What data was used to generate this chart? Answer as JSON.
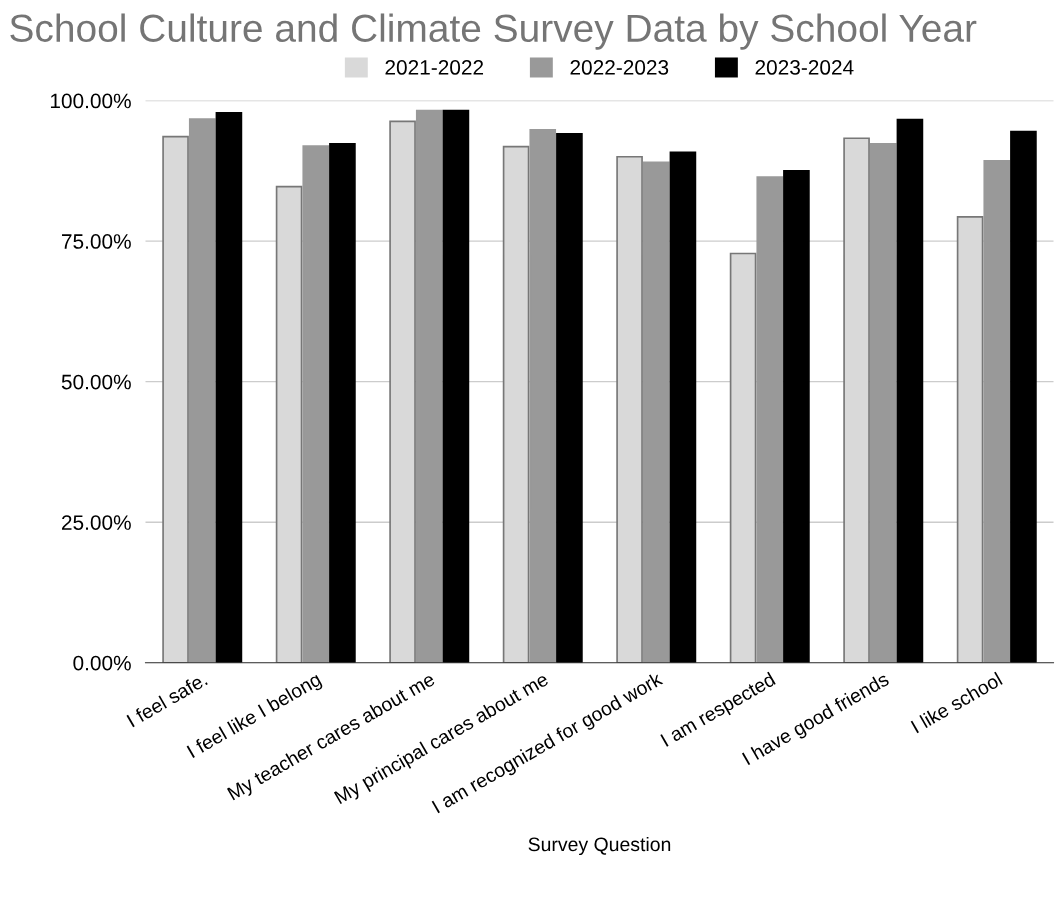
{
  "chart_data": {
    "type": "bar",
    "title": "School Culture and Climate Survey Data by School Year",
    "xlabel": "Survey Question",
    "categories": [
      "I feel safe.",
      "I feel like I belong",
      "My teacher cares about me",
      "My principal cares about me",
      "I am recognized for good work",
      "I am respected",
      "I have good friends",
      "I like school"
    ],
    "series": [
      {
        "name": "2021-2022",
        "color": "#d9d9d9",
        "values": [
          93.6,
          84.7,
          96.3,
          91.8,
          90.0,
          72.8,
          93.3,
          79.3
        ]
      },
      {
        "name": "2022-2023",
        "color": "#999999",
        "values": [
          96.7,
          91.9,
          98.2,
          94.8,
          89.0,
          86.4,
          92.3,
          89.3
        ]
      },
      {
        "name": "2023-2024",
        "color": "#000000",
        "values": [
          97.8,
          92.3,
          98.2,
          94.1,
          90.8,
          87.5,
          96.6,
          94.5
        ]
      }
    ],
    "ylim": [
      0,
      100
    ],
    "yticks": [
      {
        "value": 0,
        "label": "0.00%"
      },
      {
        "value": 25,
        "label": "25.00%"
      },
      {
        "value": 50,
        "label": "50.00%"
      },
      {
        "value": 75,
        "label": "75.00%"
      },
      {
        "value": 100,
        "label": "100.00%"
      }
    ],
    "grid": "y",
    "legend": "top"
  }
}
